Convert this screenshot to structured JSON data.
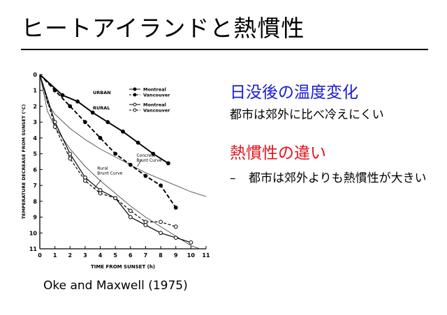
{
  "slide": {
    "title": "ヒートアイランドと熱慣性",
    "credit": "Oke and Maxwell (1975)",
    "section1": {
      "heading": "日没後の温度変化",
      "text": "都市は郊外に比べ冷えにくい"
    },
    "section2": {
      "heading": "熱慣性の違い",
      "bullet_marker": "–",
      "bullet": "都市は郊外よりも熱慣性が大きい"
    },
    "colors": {
      "heading1": "#1a1ad8",
      "heading2": "#e0141e"
    }
  },
  "chart_data": {
    "type": "line",
    "xlabel": "TIME FROM SUNSET (h)",
    "ylabel": "TEMPERATURE DECREASE FROM SUNSET (°C)",
    "xlim": [
      0,
      11
    ],
    "ylim": [
      0,
      11
    ],
    "y_inverted": true,
    "x_ticks": [
      0,
      1,
      2,
      3,
      4,
      5,
      6,
      7,
      8,
      9,
      10,
      11
    ],
    "y_ticks": [
      0,
      1,
      2,
      3,
      4,
      5,
      6,
      7,
      8,
      9,
      10,
      11
    ],
    "legend": {
      "groups": [
        {
          "label": "URBAN",
          "entries": [
            "Montreal",
            "Vancouver"
          ]
        },
        {
          "label": "RURAL",
          "entries": [
            "Montreal",
            "Vancouver"
          ]
        }
      ],
      "position": "top-right"
    },
    "series": [
      {
        "name": "Montreal",
        "group": "URBAN",
        "marker": "filled",
        "style": "solid",
        "x": [
          0,
          1.5,
          2.5,
          3.5,
          4.5,
          5.5,
          6.5,
          7.5,
          8.5
        ],
        "y": [
          0,
          1.3,
          1.7,
          2.4,
          3.0,
          3.6,
          4.3,
          5.0,
          5.6
        ]
      },
      {
        "name": "Vancouver",
        "group": "URBAN",
        "marker": "filled",
        "style": "dashed",
        "x": [
          0,
          1,
          2,
          3,
          4,
          5,
          6,
          7,
          8,
          9
        ],
        "y": [
          0,
          1.0,
          2.0,
          3.0,
          4.0,
          5.0,
          5.7,
          6.4,
          7.0,
          8.4
        ]
      },
      {
        "name": "Montreal",
        "group": "RURAL",
        "marker": "open",
        "style": "solid",
        "x": [
          0,
          1,
          2,
          3,
          4,
          5,
          6,
          7,
          8,
          9,
          10
        ],
        "y": [
          0,
          3.0,
          5.0,
          6.5,
          7.3,
          7.8,
          9.0,
          9.5,
          10.0,
          10.3,
          10.6
        ]
      },
      {
        "name": "Vancouver",
        "group": "RURAL",
        "marker": "open",
        "style": "dashed",
        "x": [
          0,
          1,
          2,
          3,
          4,
          5,
          6,
          7,
          8,
          9
        ],
        "y": [
          0,
          3.3,
          5.3,
          6.7,
          7.5,
          7.8,
          8.6,
          9.3,
          9.3,
          9.6
        ]
      }
    ],
    "reference_curves": [
      {
        "name": "Rural Brunt Curve",
        "x": [
          0,
          0.5,
          1,
          2,
          3,
          4,
          5,
          6,
          7,
          8,
          9,
          10,
          10.6
        ],
        "y": [
          0,
          2.3,
          3.3,
          4.7,
          5.8,
          6.7,
          7.5,
          8.3,
          9.0,
          9.6,
          10.2,
          10.8,
          11.0
        ]
      },
      {
        "name": "Concrete Brunt Curve",
        "x": [
          0,
          0.5,
          1,
          2,
          3,
          4,
          5,
          6,
          7,
          8,
          9,
          10,
          11
        ],
        "y": [
          0,
          1.8,
          2.5,
          3.4,
          4.1,
          4.7,
          5.2,
          5.7,
          6.2,
          6.6,
          7.0,
          7.4,
          7.7
        ]
      }
    ],
    "annotations": [
      {
        "lines": [
          "Concrete",
          "Brunt Curve"
        ],
        "x": 6.4,
        "y": 5.2
      },
      {
        "lines": [
          "Rural",
          "Brunt Curve"
        ],
        "x": 3.8,
        "y": 6.0
      }
    ]
  }
}
